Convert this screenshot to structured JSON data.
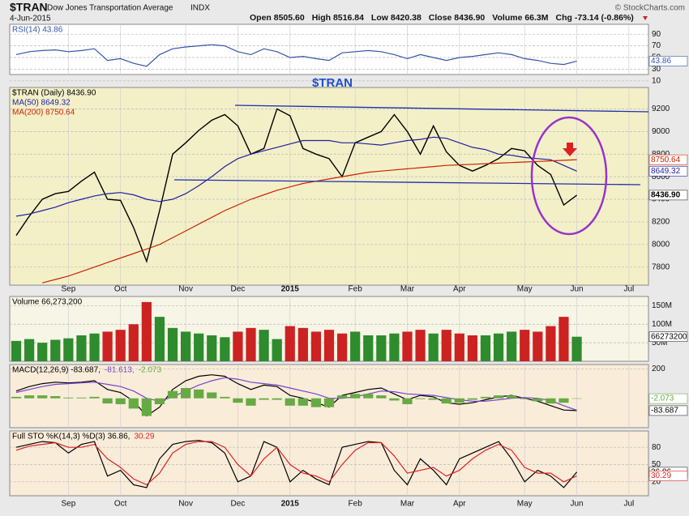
{
  "header": {
    "symbol": "$TRAN",
    "name": "Dow Jones Transportation Average",
    "exchange": "INDX",
    "date": "4-Jun-2015",
    "quote": [
      "Open 8505.60",
      "High 8516.84",
      "Low 8420.38",
      "Close 8436.90",
      "Volume 66.3M",
      "Chg -73.14 (-0.86%)"
    ],
    "watermark": "© StockCharts.com"
  },
  "chart_data": [
    {
      "type": "line",
      "background": "#ffffff",
      "ylim": [
        0,
        100
      ],
      "yticks": [
        10,
        30,
        50,
        70,
        90
      ],
      "series": [
        {
          "name": "RSI(14) 43.86",
          "color": "#3355aa",
          "tag": "43.86",
          "values": [
            55,
            60,
            62,
            63,
            60,
            62,
            65,
            45,
            48,
            40,
            35,
            55,
            65,
            68,
            70,
            72,
            70,
            60,
            55,
            65,
            60,
            50,
            52,
            48,
            45,
            58,
            60,
            62,
            60,
            55,
            48,
            55,
            50,
            45,
            50,
            52,
            55,
            58,
            55,
            48,
            45,
            40,
            38,
            43.86
          ]
        }
      ]
    },
    {
      "type": "line",
      "background": "#f3f0c8",
      "annotation": "$TRAN",
      "legend": "stacked",
      "categories": [
        null,
        null,
        null,
        null,
        "Sep",
        null,
        null,
        null,
        "Oct",
        null,
        null,
        null,
        null,
        "Nov",
        null,
        null,
        null,
        "Dec",
        null,
        null,
        null,
        "2015",
        null,
        null,
        null,
        null,
        "Feb",
        null,
        null,
        null,
        "Mar",
        null,
        null,
        null,
        "Apr",
        null,
        null,
        null,
        null,
        "May",
        null,
        null,
        null,
        "Jun",
        null,
        null,
        null,
        "Jul",
        null
      ],
      "ylim": [
        7640,
        9390
      ],
      "yticks": [
        7800,
        8000,
        8200,
        8400,
        8600,
        8800,
        9000,
        9200
      ],
      "series": [
        {
          "name": "$TRAN (Daily) 8436.90",
          "color": "#000000",
          "tag": "8436.90",
          "values": [
            8080,
            8250,
            8400,
            8450,
            8470,
            8560,
            8640,
            8400,
            8390,
            8150,
            7850,
            8300,
            8800,
            8900,
            9010,
            9100,
            9150,
            9050,
            8800,
            8850,
            9200,
            9140,
            8850,
            8800,
            8760,
            8600,
            8900,
            8950,
            9000,
            9150,
            9000,
            8800,
            9050,
            8820,
            8700,
            8650,
            8700,
            8760,
            8850,
            8830,
            8700,
            8620,
            8350,
            8436.9,
            null,
            null,
            null,
            null,
            null
          ]
        },
        {
          "name": "MA(50) 8649.32",
          "color": "#1f1fa0",
          "tag": "8649.32",
          "values": [
            8250,
            8270,
            8300,
            8330,
            8370,
            8400,
            8430,
            8450,
            8460,
            8440,
            8400,
            8380,
            8400,
            8450,
            8520,
            8600,
            8690,
            8760,
            8800,
            8830,
            8860,
            8890,
            8920,
            8920,
            8920,
            8900,
            8900,
            8890,
            8880,
            8900,
            8920,
            8930,
            8950,
            8940,
            8900,
            8860,
            8840,
            8800,
            8790,
            8770,
            8760,
            8750,
            8700,
            8649.32,
            null,
            null,
            null,
            null,
            null
          ]
        },
        {
          "name": "MA(200) 8750.64",
          "color": "#cc2200",
          "tag": "8750.64",
          "values": [
            null,
            null,
            7660,
            7690,
            7720,
            7760,
            7800,
            7840,
            7880,
            7920,
            7960,
            8000,
            8060,
            8120,
            8180,
            8240,
            8300,
            8350,
            8400,
            8440,
            8480,
            8510,
            8540,
            8560,
            8580,
            8600,
            8620,
            8640,
            8650,
            8660,
            8670,
            8680,
            8690,
            8700,
            8705,
            8710,
            8715,
            8720,
            8725,
            8730,
            8735,
            8740,
            8745,
            8750.64,
            null,
            null,
            null,
            null,
            null
          ]
        }
      ]
    },
    {
      "type": "bar",
      "background": "#f7f5e6",
      "up_color": "#2e8b2e",
      "down_color": "#cc2222",
      "ylim": [
        0,
        175000000
      ],
      "yticks": [
        {
          "value": 50000000,
          "label": "50M"
        },
        {
          "value": 100000000,
          "label": "100M"
        },
        {
          "value": 150000000,
          "label": "150M"
        }
      ],
      "series": [
        {
          "name": "Volume 66,273,200",
          "color": "#000000",
          "tag": "66273200",
          "values": [
            55000000,
            60000000,
            50000000,
            58000000,
            62000000,
            70000000,
            75000000,
            80000000,
            85000000,
            100000000,
            160000000,
            120000000,
            90000000,
            80000000,
            75000000,
            70000000,
            65000000,
            80000000,
            90000000,
            85000000,
            60000000,
            95000000,
            90000000,
            80000000,
            85000000,
            75000000,
            80000000,
            70000000,
            70000000,
            75000000,
            80000000,
            85000000,
            75000000,
            85000000,
            75000000,
            70000000,
            70000000,
            75000000,
            80000000,
            85000000,
            80000000,
            95000000,
            120000000,
            66273200
          ]
        }
      ]
    },
    {
      "type": "line",
      "background": "#f9ecd9",
      "ylim": [
        -200,
        230
      ],
      "yticks": [
        200
      ],
      "series": [
        {
          "name": "MACD(12,26,9) -83.687,",
          "color": "#000000",
          "kind": "line",
          "tag": "-83.687",
          "values": [
            50,
            80,
            100,
            110,
            105,
            110,
            120,
            60,
            40,
            -20,
            -120,
            -60,
            60,
            120,
            150,
            160,
            150,
            100,
            60,
            90,
            80,
            20,
            0,
            -30,
            -60,
            20,
            40,
            60,
            70,
            30,
            -10,
            20,
            10,
            -30,
            -40,
            -30,
            -10,
            10,
            20,
            0,
            -20,
            -50,
            -80,
            -83.687
          ]
        },
        {
          "name": "-81.613,",
          "color": "#7744cc",
          "kind": "line",
          "values": [
            40,
            60,
            80,
            95,
            100,
            105,
            110,
            95,
            80,
            50,
            0,
            -20,
            10,
            50,
            90,
            120,
            140,
            130,
            110,
            100,
            90,
            70,
            50,
            30,
            0,
            0,
            10,
            30,
            50,
            45,
            30,
            25,
            20,
            5,
            -10,
            -20,
            -20,
            -10,
            0,
            5,
            0,
            -15,
            -50,
            -81.613
          ]
        },
        {
          "name": "-2.073",
          "color": "#66aa44",
          "kind": "bar",
          "tag": "-2.073",
          "values": [
            10,
            20,
            20,
            15,
            5,
            5,
            10,
            -35,
            -40,
            -70,
            -120,
            -40,
            50,
            70,
            60,
            40,
            10,
            -30,
            -50,
            -10,
            -10,
            -50,
            -50,
            -60,
            -60,
            20,
            30,
            30,
            20,
            -15,
            -40,
            -5,
            -10,
            -35,
            -30,
            -10,
            10,
            20,
            20,
            -5,
            -20,
            -35,
            -30,
            -2.073
          ]
        }
      ]
    },
    {
      "type": "line",
      "background": "#f9ecd9",
      "ylim": [
        0,
        100
      ],
      "yticks": [
        20,
        50,
        80
      ],
      "series": [
        {
          "name": "Full STO %K(14,3) %D(3) 36.86,",
          "color": "#000000",
          "tag": "36.86",
          "values": [
            80,
            85,
            90,
            88,
            70,
            85,
            90,
            30,
            40,
            15,
            10,
            60,
            85,
            90,
            92,
            88,
            70,
            20,
            30,
            90,
            80,
            20,
            40,
            25,
            15,
            80,
            85,
            90,
            88,
            40,
            15,
            60,
            40,
            15,
            60,
            70,
            80,
            90,
            60,
            20,
            40,
            30,
            10,
            36.86
          ]
        },
        {
          "name": "30.29",
          "color": "#dd2222",
          "tag": "30.29",
          "values": [
            75,
            82,
            85,
            88,
            80,
            80,
            85,
            60,
            45,
            25,
            15,
            35,
            70,
            85,
            90,
            90,
            80,
            50,
            30,
            60,
            80,
            50,
            35,
            30,
            20,
            50,
            75,
            88,
            88,
            65,
            35,
            40,
            45,
            30,
            40,
            60,
            75,
            85,
            75,
            45,
            35,
            35,
            20,
            30.29
          ]
        }
      ]
    }
  ]
}
